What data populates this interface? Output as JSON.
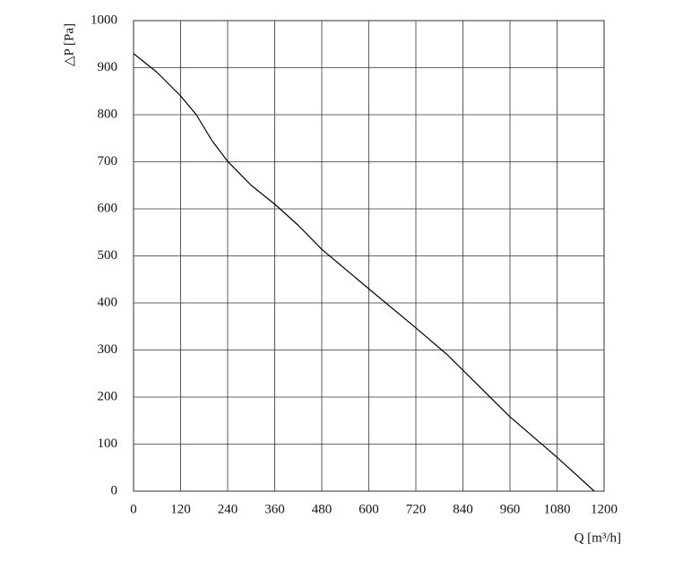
{
  "chart_data": {
    "type": "line",
    "x_label": "Q [m³/h]",
    "y_label": "△P [Pa]",
    "x": [
      0,
      60,
      120,
      160,
      200,
      240,
      300,
      360,
      420,
      480,
      600,
      720,
      800,
      840,
      960,
      1080,
      1175
    ],
    "series": [
      {
        "color": "#000000",
        "values": [
          930,
          890,
          840,
          800,
          745,
          701,
          650,
          610,
          565,
          514,
          430,
          347,
          290,
          257,
          158,
          72,
          0
        ]
      }
    ],
    "xlim": [
      0,
      1200
    ],
    "xticks": [
      0,
      120,
      240,
      360,
      480,
      600,
      720,
      840,
      960,
      1080,
      1200
    ],
    "ylim": [
      0,
      1000
    ],
    "yticks": [
      0,
      100,
      200,
      300,
      400,
      500,
      600,
      700,
      800,
      900,
      1000
    ],
    "grid": true
  }
}
